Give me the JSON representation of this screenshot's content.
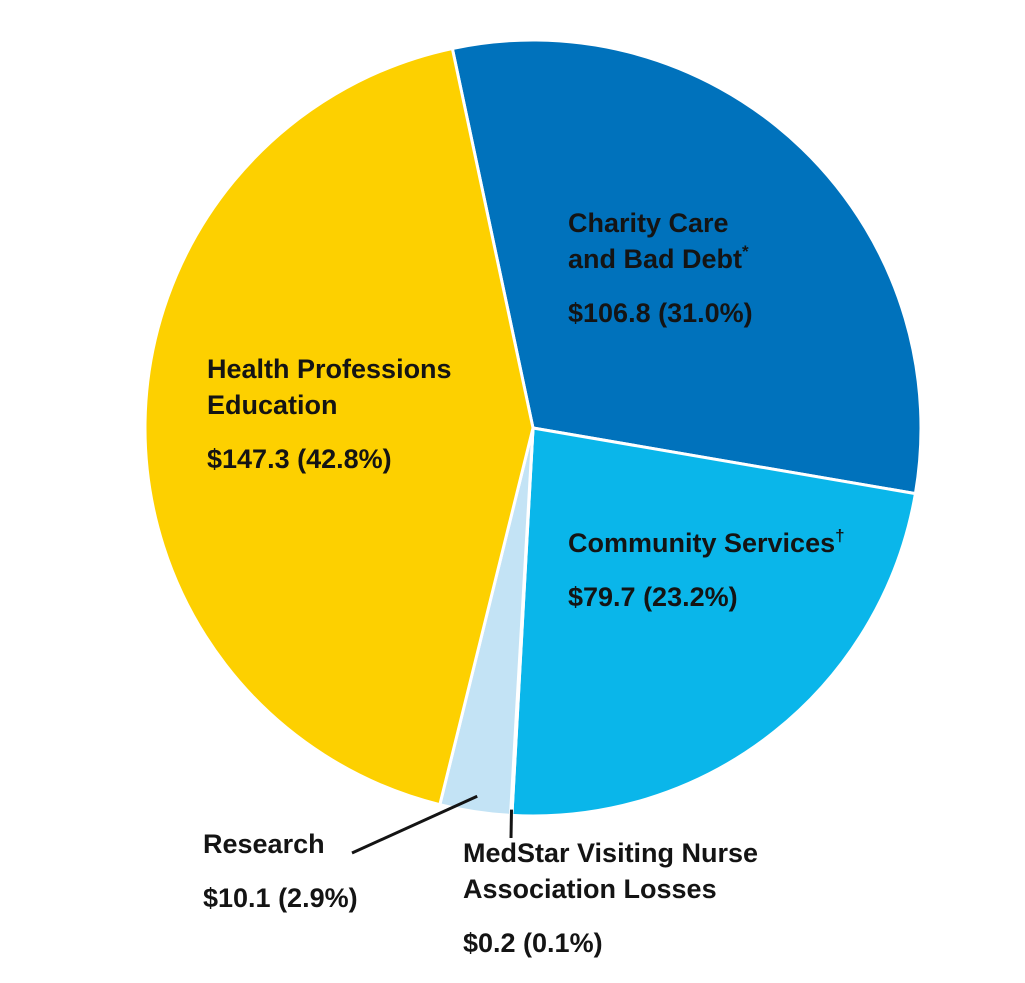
{
  "chart_data": {
    "type": "pie",
    "slices": [
      {
        "key": "charity",
        "label_lines": [
          "Charity Care",
          "and Bad Debt"
        ],
        "label_sup": "*",
        "value": 106.8,
        "percent": 31.0,
        "value_text": "$106.8 (31.0%)",
        "color": "#0072BC"
      },
      {
        "key": "community",
        "label_lines": [
          "Community Services"
        ],
        "label_sup": "†",
        "value": 79.7,
        "percent": 23.2,
        "value_text": "$79.7 (23.2%)",
        "color": "#0AB6EA"
      },
      {
        "key": "vna",
        "label_lines": [
          "MedStar Visiting Nurse",
          "Association Losses"
        ],
        "label_sup": "",
        "value": 0.2,
        "percent": 0.1,
        "value_text": "$0.2 (0.1%)",
        "color": "#0B2244"
      },
      {
        "key": "research",
        "label_lines": [
          "Research"
        ],
        "label_sup": "",
        "value": 10.1,
        "percent": 2.9,
        "value_text": "$10.1 (2.9%)",
        "color": "#C3E3F5"
      },
      {
        "key": "education",
        "label_lines": [
          "Health Professions",
          "Education"
        ],
        "label_sup": "",
        "value": 147.3,
        "percent": 42.8,
        "value_text": "$147.3 (42.8%)",
        "color": "#FDD000"
      }
    ]
  }
}
